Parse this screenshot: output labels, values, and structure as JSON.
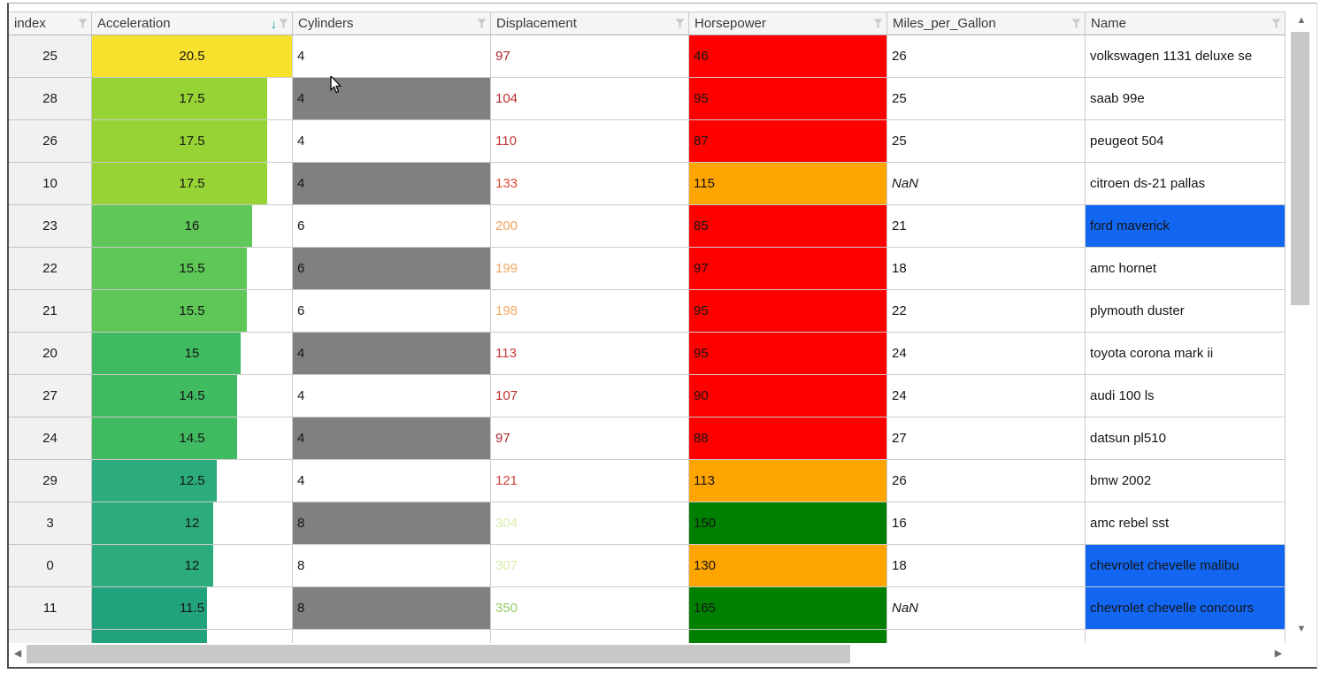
{
  "grid": {
    "columns": [
      {
        "label": "index"
      },
      {
        "label": "Acceleration"
      },
      {
        "label": "Cylinders"
      },
      {
        "label": "Displacement"
      },
      {
        "label": "Horsepower"
      },
      {
        "label": "Miles_per_Gallon"
      },
      {
        "label": "Name"
      }
    ],
    "sort": {
      "column": "Acceleration",
      "direction": "descending"
    }
  },
  "icons": {
    "sort_desc": "↓",
    "filter": "funnel",
    "scroll_up": "▲",
    "scroll_down": "▼",
    "scroll_left": "◀",
    "scroll_right": "▶"
  },
  "palette": {
    "horsepower_red": "#FF0000",
    "horsepower_orange": "#FFA500",
    "horsepower_green": "#008000",
    "cylinders_gray": "#808080",
    "name_highlight_blue": "#1266F1",
    "accel_yellow": "#F8E12D",
    "accel_teal": "#23A27E",
    "header_bg": "#F5F5F5",
    "sort_icon_teal": "#1899AE"
  },
  "rows": [
    {
      "index": "25",
      "accel": "20.5",
      "accel_pct": "100%",
      "accel_color": "#F8E12D",
      "cyl": "4",
      "cyl_bg": "#FFFFFF",
      "disp": "97",
      "disp_color": "#AF282D",
      "hp": "46",
      "hp_bg": "#FF0000",
      "mpg": "26",
      "mpg_italic": false,
      "name": "volkswagen 1131 deluxe se",
      "name_bg": "#FFFFFF"
    },
    {
      "index": "28",
      "accel": "17.5",
      "accel_pct": "87.5%",
      "accel_color": "#97D334",
      "cyl": "4",
      "cyl_bg": "#808080",
      "disp": "104",
      "disp_color": "#B92D2C",
      "hp": "95",
      "hp_bg": "#FF0000",
      "mpg": "25",
      "mpg_italic": false,
      "name": "saab 99e",
      "name_bg": "#FFFFFF"
    },
    {
      "index": "26",
      "accel": "17.5",
      "accel_pct": "87.5%",
      "accel_color": "#97D334",
      "cyl": "4",
      "cyl_bg": "#FFFFFF",
      "disp": "110",
      "disp_color": "#C13430",
      "hp": "87",
      "hp_bg": "#FF0000",
      "mpg": "25",
      "mpg_italic": false,
      "name": "peugeot 504",
      "name_bg": "#FFFFFF"
    },
    {
      "index": "10",
      "accel": "17.5",
      "accel_pct": "87.5%",
      "accel_color": "#97D334",
      "cyl": "4",
      "cyl_bg": "#808080",
      "disp": "133",
      "disp_color": "#DB4C37",
      "hp": "115",
      "hp_bg": "#FFA500",
      "mpg": "NaN",
      "mpg_italic": true,
      "name": "citroen ds-21 pallas",
      "name_bg": "#FFFFFF"
    },
    {
      "index": "23",
      "accel": "16",
      "accel_pct": "80%",
      "accel_color": "#5EC758",
      "cyl": "6",
      "cyl_bg": "#FFFFFF",
      "disp": "200",
      "disp_color": "#F1A35B",
      "hp": "85",
      "hp_bg": "#FF0000",
      "mpg": "21",
      "mpg_italic": false,
      "name": "ford maverick",
      "name_bg": "#1266F1"
    },
    {
      "index": "22",
      "accel": "15.5",
      "accel_pct": "77.5%",
      "accel_color": "#5EC758",
      "cyl": "6",
      "cyl_bg": "#808080",
      "disp": "199",
      "disp_color": "#F3A961",
      "hp": "97",
      "hp_bg": "#FF0000",
      "mpg": "18",
      "mpg_italic": false,
      "name": "amc hornet",
      "name_bg": "#FFFFFF"
    },
    {
      "index": "21",
      "accel": "15.5",
      "accel_pct": "77.5%",
      "accel_color": "#5EC758",
      "cyl": "6",
      "cyl_bg": "#FFFFFF",
      "disp": "198",
      "disp_color": "#F3A961",
      "hp": "95",
      "hp_bg": "#FF0000",
      "mpg": "22",
      "mpg_italic": false,
      "name": "plymouth duster",
      "name_bg": "#FFFFFF"
    },
    {
      "index": "20",
      "accel": "15",
      "accel_pct": "74.5%",
      "accel_color": "#41BB61",
      "cyl": "4",
      "cyl_bg": "#808080",
      "disp": "113",
      "disp_color": "#C73A34",
      "hp": "95",
      "hp_bg": "#FF0000",
      "mpg": "24",
      "mpg_italic": false,
      "name": "toyota corona mark ii",
      "name_bg": "#FFFFFF"
    },
    {
      "index": "27",
      "accel": "14.5",
      "accel_pct": "72.5%",
      "accel_color": "#41BB61",
      "cyl": "4",
      "cyl_bg": "#FFFFFF",
      "disp": "107",
      "disp_color": "#BC302D",
      "hp": "90",
      "hp_bg": "#FF0000",
      "mpg": "24",
      "mpg_italic": false,
      "name": "audi 100 ls",
      "name_bg": "#FFFFFF"
    },
    {
      "index": "24",
      "accel": "14.5",
      "accel_pct": "72.5%",
      "accel_color": "#41BB61",
      "cyl": "4",
      "cyl_bg": "#808080",
      "disp": "97",
      "disp_color": "#AF282D",
      "hp": "88",
      "hp_bg": "#FF0000",
      "mpg": "27",
      "mpg_italic": false,
      "name": "datsun pl510",
      "name_bg": "#FFFFFF"
    },
    {
      "index": "29",
      "accel": "12.5",
      "accel_pct": "62.5%",
      "accel_color": "#2CAB7D",
      "cyl": "4",
      "cyl_bg": "#FFFFFF",
      "disp": "121",
      "disp_color": "#D2443C",
      "hp": "113",
      "hp_bg": "#FFA500",
      "mpg": "26",
      "mpg_italic": false,
      "name": "bmw 2002",
      "name_bg": "#FFFFFF"
    },
    {
      "index": "3",
      "accel": "12",
      "accel_pct": "60.5%",
      "accel_color": "#2CAB7D",
      "cyl": "8",
      "cyl_bg": "#808080",
      "disp": "304",
      "disp_color": "#DAEDAD",
      "hp": "150",
      "hp_bg": "#008000",
      "mpg": "16",
      "mpg_italic": false,
      "name": "amc rebel sst",
      "name_bg": "#FFFFFF"
    },
    {
      "index": "0",
      "accel": "12",
      "accel_pct": "60.5%",
      "accel_color": "#2CAB7D",
      "cyl": "8",
      "cyl_bg": "#FFFFFF",
      "disp": "307",
      "disp_color": "#DAEDAD",
      "hp": "130",
      "hp_bg": "#FFA500",
      "mpg": "18",
      "mpg_italic": false,
      "name": "chevrolet chevelle malibu",
      "name_bg": "#1266F1"
    },
    {
      "index": "11",
      "accel": "11.5",
      "accel_pct": "57.5%",
      "accel_color": "#23A27E",
      "cyl": "8",
      "cyl_bg": "#808080",
      "disp": "350",
      "disp_color": "#93CE66",
      "hp": "165",
      "hp_bg": "#008000",
      "mpg": "NaN",
      "mpg_italic": true,
      "name": "chevrolet chevelle concours",
      "name_bg": "#1266F1"
    },
    {
      "index": "",
      "accel": "",
      "accel_pct": "57.5%",
      "accel_color": "#23A27E",
      "cyl": "",
      "cyl_bg": "#FFFFFF",
      "disp": "",
      "disp_color": "#151515",
      "hp": "",
      "hp_bg": "#008000",
      "mpg": "",
      "mpg_italic": false,
      "name": "",
      "name_bg": "#FFFFFF"
    }
  ]
}
